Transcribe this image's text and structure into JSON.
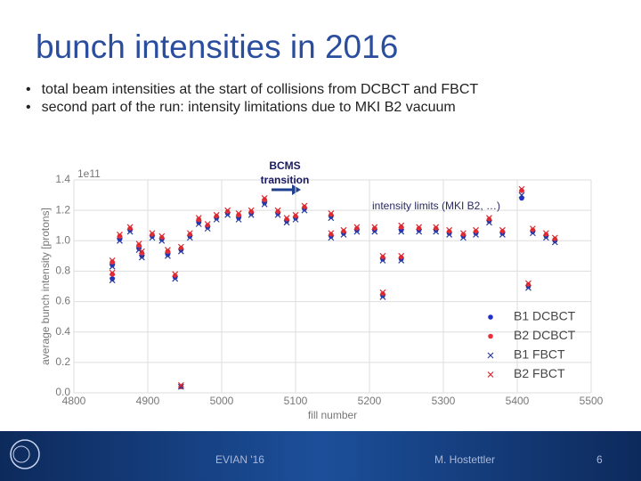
{
  "header": {
    "title": "bunch intensities in 2016"
  },
  "bullets": [
    "total beam intensities at the start of collisions from DCBCT and FBCT",
    "second part of the run: intensity limitations due to MKI B2 vacuum"
  ],
  "chart_data": {
    "type": "scatter",
    "xlabel": "fill number",
    "ylabel": "average bunch intensity [protons]",
    "y_offset_label": "1e11",
    "annotations": [
      "BCMS transition",
      "intensity limits (MKI B2, …)"
    ],
    "x": [
      4852,
      4852,
      4862,
      4876,
      4888,
      4892,
      4906,
      4919,
      4927,
      4937,
      4945,
      4945,
      4957,
      4969,
      4981,
      4993,
      5008,
      5023,
      5040,
      5058,
      5076,
      5088,
      5100,
      5112,
      5148,
      5148,
      5165,
      5183,
      5207,
      5218,
      5218,
      5243,
      5243,
      5267,
      5290,
      5308,
      5327,
      5344,
      5362,
      5380,
      5406,
      5415,
      5421,
      5439,
      5451
    ],
    "series": [
      {
        "name": "B1 DCBCT",
        "color": "#1f2fc8",
        "marker": "o",
        "values": [
          0.75,
          0.84,
          1.01,
          1.07,
          0.95,
          0.9,
          1.03,
          1.01,
          0.91,
          0.76,
          0.04,
          0.94,
          1.03,
          1.12,
          1.09,
          1.15,
          1.18,
          1.15,
          1.18,
          1.25,
          1.18,
          1.13,
          1.15,
          1.21,
          1.16,
          1.03,
          1.05,
          1.07,
          1.07,
          0.88,
          0.64,
          1.07,
          0.88,
          1.07,
          1.07,
          1.05,
          1.03,
          1.05,
          1.13,
          1.05,
          1.28,
          0.7,
          1.06,
          1.03,
          1.0
        ]
      },
      {
        "name": "B2 DCBCT",
        "color": "#e8303a",
        "marker": "o",
        "values": [
          0.78,
          0.86,
          1.03,
          1.08,
          0.97,
          0.92,
          1.04,
          1.02,
          0.93,
          0.77,
          0.04,
          0.95,
          1.04,
          1.14,
          1.1,
          1.16,
          1.19,
          1.17,
          1.19,
          1.27,
          1.19,
          1.14,
          1.16,
          1.22,
          1.17,
          1.04,
          1.06,
          1.08,
          1.08,
          0.89,
          0.65,
          1.09,
          0.89,
          1.08,
          1.08,
          1.06,
          1.04,
          1.06,
          1.14,
          1.06,
          1.33,
          0.71,
          1.07,
          1.04,
          1.01
        ]
      },
      {
        "name": "B1 FBCT",
        "color": "#2a3a9a",
        "marker": "x",
        "values": [
          0.74,
          0.83,
          1.0,
          1.06,
          0.94,
          0.89,
          1.02,
          1.0,
          0.9,
          0.75,
          0.04,
          0.93,
          1.02,
          1.11,
          1.08,
          1.14,
          1.17,
          1.14,
          1.17,
          1.24,
          1.17,
          1.12,
          1.14,
          1.2,
          1.15,
          1.02,
          1.04,
          1.06,
          1.06,
          0.87,
          0.63,
          1.06,
          0.87,
          1.06,
          1.06,
          1.04,
          1.02,
          1.04,
          1.12,
          1.04,
          1.3,
          0.69,
          1.05,
          1.02,
          0.99
        ]
      },
      {
        "name": "B2 FBCT",
        "color": "#d8282e",
        "marker": "x",
        "values": [
          0.79,
          0.87,
          1.04,
          1.09,
          0.98,
          0.93,
          1.05,
          1.03,
          0.94,
          0.78,
          0.05,
          0.96,
          1.05,
          1.15,
          1.11,
          1.17,
          1.2,
          1.18,
          1.2,
          1.28,
          1.2,
          1.15,
          1.17,
          1.23,
          1.18,
          1.05,
          1.07,
          1.09,
          1.09,
          0.9,
          0.66,
          1.1,
          0.9,
          1.09,
          1.09,
          1.07,
          1.05,
          1.07,
          1.15,
          1.07,
          1.34,
          0.72,
          1.08,
          1.05,
          1.02
        ]
      }
    ],
    "xlim": [
      4800,
      5500
    ],
    "xticks": [
      4800,
      4900,
      5000,
      5100,
      5200,
      5300,
      5400,
      5500
    ],
    "ylim": [
      0,
      1.4
    ],
    "yticks": [
      {
        "value": 0,
        "label": "0.0"
      },
      0.2,
      0.4,
      0.6,
      0.8,
      {
        "value": 1,
        "label": "1.0"
      },
      1.2,
      1.4
    ],
    "grid": true,
    "legend": "lower right"
  },
  "footer": {
    "event": "EVIAN '16",
    "author": "M. Hostettler",
    "page": "6"
  }
}
